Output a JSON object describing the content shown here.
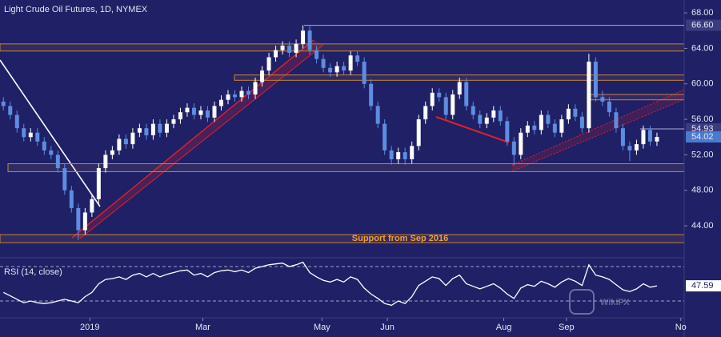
{
  "chart_data": [
    {
      "type": "candlestick",
      "title": "Light Crude Oil Futures, 1D, NYMEX",
      "annotation": "Support from Sep 2016",
      "watermark": "WikiFX",
      "xlim": [
        -0.5,
        100
      ],
      "ylim": [
        40.4,
        69.45
      ],
      "yticks": [
        {
          "value": 44,
          "label": "44.00"
        },
        {
          "value": 48,
          "label": "48.00"
        },
        {
          "value": 52,
          "label": "52.00"
        },
        {
          "value": 56,
          "label": "56.00"
        },
        {
          "value": 60,
          "label": "60.00"
        },
        {
          "value": 64,
          "label": "64.00"
        },
        {
          "value": 68,
          "label": "68.00"
        }
      ],
      "levels": [
        {
          "value": 66.6,
          "label": "66.60"
        },
        {
          "value": 54.93,
          "label": "54.93"
        }
      ],
      "zones": [
        [
          63.7,
          64.5
        ],
        [
          60.4,
          61
        ],
        [
          58.2,
          58.8
        ],
        [
          50.1,
          51
        ],
        [
          42.1,
          43
        ]
      ],
      "up_color": "#ffffff",
      "down_color": "#5e8de0",
      "series": [
        {
          "last_label": "54.02",
          "color": "#4a79d0",
          "values": [
            [
              58,
              58.5,
              57,
              57.5
            ],
            [
              57.5,
              58,
              56,
              56.5
            ],
            [
              56.5,
              57,
              54.5,
              55
            ],
            [
              55,
              55.5,
              53.5,
              54
            ],
            [
              54,
              55,
              53.5,
              54.5
            ],
            [
              54.5,
              55,
              53,
              53.5
            ],
            [
              53.5,
              54,
              52,
              52.5
            ],
            [
              52.5,
              53,
              51.5,
              52
            ],
            [
              52,
              52.5,
              50,
              50.5
            ],
            [
              50.5,
              51,
              47.5,
              48
            ],
            [
              48,
              48.5,
              45.5,
              46
            ],
            [
              46,
              46.5,
              42.4,
              43.5
            ],
            [
              43.5,
              46,
              43,
              45.5
            ],
            [
              45.5,
              47.5,
              45,
              47
            ],
            [
              47,
              51,
              46.5,
              50.5
            ],
            [
              50.5,
              52.5,
              50,
              52
            ],
            [
              52,
              53,
              51.5,
              52.5
            ],
            [
              52.5,
              54.3,
              52,
              53.8
            ],
            [
              53.8,
              54.3,
              52.7,
              53.2
            ],
            [
              53.2,
              55,
              52.7,
              54.5
            ],
            [
              54.5,
              55.5,
              54,
              55
            ],
            [
              55,
              55.5,
              53.7,
              54.2
            ],
            [
              54.2,
              56,
              53.7,
              55.5
            ],
            [
              55.5,
              56,
              54,
              54.5
            ],
            [
              54.5,
              56,
              54,
              55.5
            ],
            [
              55.5,
              56.5,
              55,
              56
            ],
            [
              56,
              57.3,
              55.5,
              56.8
            ],
            [
              56.8,
              57.8,
              56.3,
              57.3
            ],
            [
              57.3,
              57.8,
              56,
              56.5
            ],
            [
              56.5,
              57.5,
              56,
              57
            ],
            [
              57,
              57.5,
              55.7,
              56.2
            ],
            [
              56.2,
              58,
              55.7,
              57.5
            ],
            [
              57.5,
              58.7,
              57,
              58.2
            ],
            [
              58.2,
              59.3,
              57.7,
              58.8
            ],
            [
              58.8,
              59.3,
              58,
              58.5
            ],
            [
              58.5,
              59.7,
              58,
              59.2
            ],
            [
              59.2,
              59.7,
              58.3,
              58.8
            ],
            [
              58.8,
              60.7,
              58.3,
              60.2
            ],
            [
              60.2,
              62,
              59.7,
              61.5
            ],
            [
              61.5,
              63.5,
              61,
              63
            ],
            [
              63,
              64.3,
              62.5,
              63.8
            ],
            [
              63.8,
              64.8,
              63.3,
              64.3
            ],
            [
              64.3,
              64.8,
              63,
              63.5
            ],
            [
              63.5,
              65,
              63,
              64.5
            ],
            [
              64.5,
              66.6,
              64,
              66
            ],
            [
              66,
              66.5,
              63.3,
              63.8
            ],
            [
              63.8,
              64.3,
              62.3,
              62.8
            ],
            [
              62.8,
              63.3,
              61.3,
              61.8
            ],
            [
              61.8,
              62.3,
              60.8,
              61.3
            ],
            [
              61.3,
              62.5,
              60.8,
              62
            ],
            [
              62,
              62.5,
              61,
              61.5
            ],
            [
              61.5,
              63.7,
              61,
              63.2
            ],
            [
              63.2,
              63.7,
              62,
              62.5
            ],
            [
              62.5,
              63,
              59.5,
              60
            ],
            [
              60,
              60.5,
              57,
              57.5
            ],
            [
              57.5,
              58,
              55,
              55.5
            ],
            [
              55.5,
              56,
              52,
              52.5
            ],
            [
              52.5,
              53,
              50.9,
              51.5
            ],
            [
              51.5,
              52.8,
              51,
              52.3
            ],
            [
              52.3,
              52.8,
              50.9,
              51.5
            ],
            [
              51.5,
              53.5,
              51,
              53
            ],
            [
              53,
              56.5,
              52.5,
              56
            ],
            [
              56,
              58,
              55.5,
              57.5
            ],
            [
              57.5,
              59.5,
              57,
              59
            ],
            [
              59,
              59.5,
              58,
              58.5
            ],
            [
              58.5,
              59,
              56,
              56.5
            ],
            [
              56.5,
              59.3,
              56,
              58.8
            ],
            [
              58.8,
              60.7,
              58.3,
              60.2
            ],
            [
              60.2,
              60.7,
              57,
              57.5
            ],
            [
              57.5,
              58,
              56,
              56.5
            ],
            [
              56.5,
              57,
              55,
              55.5
            ],
            [
              55.5,
              56.7,
              55,
              56.2
            ],
            [
              56.2,
              57.5,
              55.7,
              57
            ],
            [
              57,
              57.5,
              55.3,
              55.8
            ],
            [
              55.8,
              56.3,
              53,
              53.5
            ],
            [
              53.5,
              54,
              50.8,
              52
            ],
            [
              52,
              55,
              51.5,
              54.5
            ],
            [
              54.5,
              55.8,
              54,
              55.3
            ],
            [
              55.3,
              55.8,
              54.3,
              54.8
            ],
            [
              54.8,
              57,
              54.3,
              56.5
            ],
            [
              56.5,
              57,
              55,
              55.5
            ],
            [
              55.5,
              56,
              54,
              54.5
            ],
            [
              54.5,
              56.5,
              54,
              56
            ],
            [
              56,
              57.7,
              55.5,
              57.2
            ],
            [
              57.2,
              57.7,
              55.8,
              56.3
            ],
            [
              56.3,
              56.8,
              54.5,
              55
            ],
            [
              55,
              63.4,
              54.5,
              62.5
            ],
            [
              62.5,
              63,
              58,
              58.5
            ],
            [
              58.5,
              59.2,
              57.5,
              58
            ],
            [
              58,
              58.5,
              56.3,
              56.8
            ],
            [
              56.8,
              57.3,
              54.5,
              55
            ],
            [
              55,
              55.5,
              52.5,
              53
            ],
            [
              53,
              53.5,
              51.3,
              52.5
            ],
            [
              52.5,
              53.7,
              52,
              53.2
            ],
            [
              53.2,
              55.3,
              52.7,
              54.8
            ],
            [
              54.8,
              55.3,
              53,
              53.5
            ],
            [
              53.5,
              54.5,
              53,
              54.02
            ]
          ]
        }
      ]
    },
    {
      "type": "line",
      "title": "RSI (14, close)",
      "xlim": [
        -0.5,
        100
      ],
      "ylim": [
        10.5,
        77.4
      ],
      "levels": [
        30,
        70
      ],
      "xticks": [
        {
          "value": 12.7,
          "label": "2019"
        },
        {
          "value": 29.3,
          "label": "Mar"
        },
        {
          "value": 46.8,
          "label": "May"
        },
        {
          "value": 56.4,
          "label": "Jun"
        },
        {
          "value": 73.5,
          "label": "Aug"
        },
        {
          "value": 82.7,
          "label": "Sep"
        },
        {
          "value": 99.5,
          "label": "No"
        }
      ],
      "series": [
        {
          "color": "#ffffff",
          "last_label": "47.59",
          "values": [
            40,
            36,
            32,
            28,
            30,
            28,
            27,
            28,
            30,
            32,
            30,
            28,
            35,
            40,
            50,
            55,
            56,
            58,
            55,
            60,
            62,
            58,
            62,
            58,
            61,
            63,
            65,
            66,
            60,
            62,
            58,
            63,
            65,
            66,
            64,
            66,
            63,
            68,
            70,
            72,
            73,
            74,
            70,
            72,
            75,
            63,
            58,
            54,
            52,
            55,
            52,
            58,
            55,
            45,
            38,
            33,
            27,
            25,
            30,
            27,
            35,
            48,
            53,
            58,
            56,
            48,
            56,
            60,
            50,
            47,
            44,
            47,
            50,
            45,
            38,
            33,
            45,
            49,
            47,
            53,
            50,
            46,
            52,
            56,
            53,
            48,
            72,
            60,
            58,
            55,
            49,
            43,
            41,
            44,
            50,
            46,
            47.59
          ]
        }
      ]
    }
  ]
}
